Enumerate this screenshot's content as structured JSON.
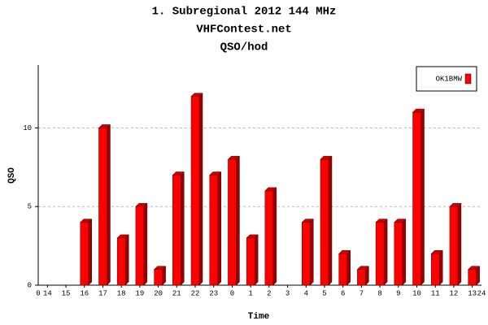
{
  "chart_data": {
    "type": "bar",
    "title": "1. Subregional 2012 144 MHz",
    "subtitle": "VHFContest.net",
    "subtitle2": "QSO/hod",
    "x_label": "Time",
    "y_label": "QSO",
    "xlim": [
      0,
      24
    ],
    "categories": [
      "14",
      "15",
      "16",
      "17",
      "18",
      "19",
      "20",
      "21",
      "22",
      "23",
      "0",
      "1",
      "2",
      "3",
      "4",
      "5",
      "6",
      "7",
      "8",
      "9",
      "10",
      "11",
      "12",
      "13"
    ],
    "series": [
      {
        "name": "OK1BMW",
        "color": "#ff0000",
        "values": [
          0,
          0,
          4,
          10,
          3,
          5,
          1,
          7,
          12,
          7,
          8,
          3,
          6,
          0,
          4,
          8,
          2,
          1,
          4,
          4,
          11,
          2,
          5,
          1
        ]
      }
    ],
    "ylim": [
      0,
      14
    ],
    "yticks": [
      0,
      5,
      10
    ],
    "grid": true,
    "legend": "top-right"
  }
}
